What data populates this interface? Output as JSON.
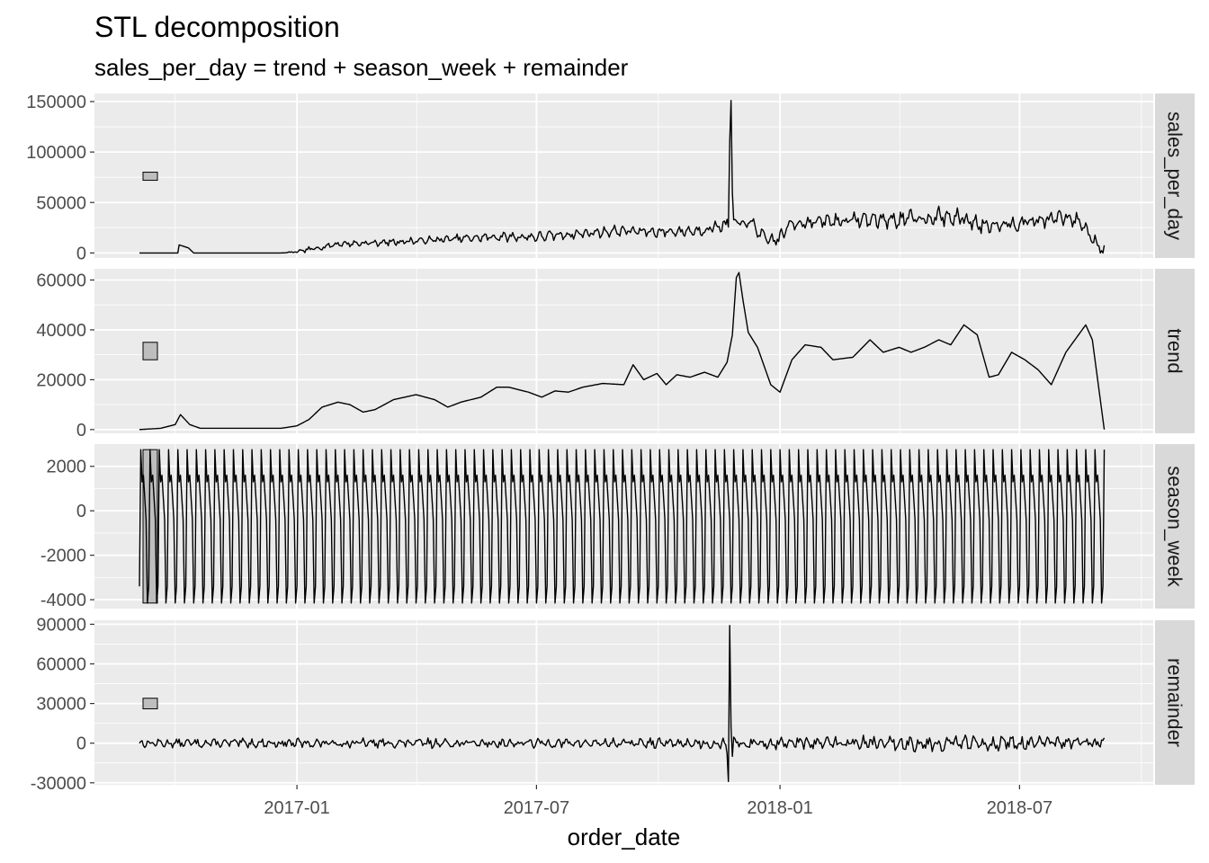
{
  "chart_data": {
    "type": "line",
    "title": "STL decomposition",
    "subtitle": "sales_per_day = trend + season_week + remainder",
    "xlabel": "order_date",
    "x_range": [
      "2016-09-04",
      "2018-09-03"
    ],
    "xlim": [
      "2016-08-01",
      "2018-10-10"
    ],
    "x_ticks": [
      "2017-01",
      "2017-07",
      "2018-01",
      "2018-07"
    ],
    "grid": true,
    "facets": [
      {
        "strip": "sales_per_day",
        "ylim": [
          -5000,
          158000
        ],
        "y_ticks": [
          0,
          50000,
          100000,
          150000
        ],
        "scale_bar": [
          72000,
          80000
        ],
        "series": {
          "type": "daily_with_weekly",
          "base": [
            [
              "2016-09-04",
              0
            ],
            [
              "2016-10-03",
              0
            ],
            [
              "2016-10-04",
              8000
            ],
            [
              "2016-10-11",
              5000
            ],
            [
              "2016-10-15",
              0
            ],
            [
              "2016-12-20",
              0
            ],
            [
              "2017-01-01",
              1000
            ],
            [
              "2017-01-15",
              4500
            ],
            [
              "2017-02-01",
              9000
            ],
            [
              "2017-03-01",
              10000
            ],
            [
              "2017-04-01",
              12000
            ],
            [
              "2017-05-01",
              14000
            ],
            [
              "2017-06-01",
              16000
            ],
            [
              "2017-07-01",
              16000
            ],
            [
              "2017-08-01",
              19000
            ],
            [
              "2017-09-01",
              22000
            ],
            [
              "2017-10-01",
              21000
            ],
            [
              "2017-11-01",
              22000
            ],
            [
              "2017-11-20",
              28000
            ],
            [
              "2017-12-10",
              30000
            ],
            [
              "2017-12-22",
              12000
            ],
            [
              "2017-12-31",
              14000
            ],
            [
              "2018-01-10",
              30000
            ],
            [
              "2018-02-01",
              31000
            ],
            [
              "2018-03-01",
              33000
            ],
            [
              "2018-04-01",
              33000
            ],
            [
              "2018-05-01",
              36000
            ],
            [
              "2018-05-20",
              34000
            ],
            [
              "2018-06-01",
              28000
            ],
            [
              "2018-07-01",
              30000
            ],
            [
              "2018-08-01",
              35000
            ],
            [
              "2018-08-15",
              32000
            ],
            [
              "2018-08-25",
              15000
            ],
            [
              "2018-09-03",
              2000
            ]
          ],
          "amp": [
            [
              "2016-09-04",
              0
            ],
            [
              "2016-12-20",
              0
            ],
            [
              "2017-01-10",
              2500
            ],
            [
              "2017-06-01",
              4500
            ],
            [
              "2017-11-01",
              5500
            ],
            [
              "2018-01-01",
              7000
            ],
            [
              "2018-05-01",
              9000
            ],
            [
              "2018-09-03",
              7000
            ]
          ],
          "spikes": [
            {
              "date": "2017-11-24",
              "values": [
                110000,
                151000,
                60000
              ]
            }
          ],
          "seed": 7
        }
      },
      {
        "strip": "trend",
        "ylim": [
          -1500,
          64500
        ],
        "y_ticks": [
          0,
          20000,
          40000,
          60000
        ],
        "scale_bar": [
          28000,
          35000
        ],
        "series": {
          "type": "smooth",
          "points": [
            [
              "2016-09-04",
              0
            ],
            [
              "2016-09-20",
              500
            ],
            [
              "2016-10-01",
              2000
            ],
            [
              "2016-10-05",
              6000
            ],
            [
              "2016-10-12",
              2000
            ],
            [
              "2016-10-20",
              500
            ],
            [
              "2016-12-20",
              500
            ],
            [
              "2017-01-01",
              1500
            ],
            [
              "2017-01-10",
              4000
            ],
            [
              "2017-01-20",
              9000
            ],
            [
              "2017-02-01",
              11000
            ],
            [
              "2017-02-10",
              10000
            ],
            [
              "2017-02-20",
              7000
            ],
            [
              "2017-03-01",
              8000
            ],
            [
              "2017-03-15",
              12000
            ],
            [
              "2017-04-01",
              14000
            ],
            [
              "2017-04-15",
              12000
            ],
            [
              "2017-04-25",
              9000
            ],
            [
              "2017-05-05",
              11000
            ],
            [
              "2017-05-20",
              13000
            ],
            [
              "2017-06-01",
              17000
            ],
            [
              "2017-06-10",
              17000
            ],
            [
              "2017-06-25",
              15000
            ],
            [
              "2017-07-05",
              13000
            ],
            [
              "2017-07-15",
              15500
            ],
            [
              "2017-07-25",
              15000
            ],
            [
              "2017-08-05",
              17000
            ],
            [
              "2017-08-20",
              18500
            ],
            [
              "2017-09-05",
              18000
            ],
            [
              "2017-09-12",
              26000
            ],
            [
              "2017-09-20",
              20000
            ],
            [
              "2017-09-30",
              22500
            ],
            [
              "2017-10-07",
              18000
            ],
            [
              "2017-10-15",
              22000
            ],
            [
              "2017-10-25",
              21000
            ],
            [
              "2017-11-05",
              23000
            ],
            [
              "2017-11-15",
              21000
            ],
            [
              "2017-11-22",
              27000
            ],
            [
              "2017-11-26",
              38000
            ],
            [
              "2017-11-29",
              61000
            ],
            [
              "2017-12-01",
              63000
            ],
            [
              "2017-12-04",
              52000
            ],
            [
              "2017-12-08",
              39000
            ],
            [
              "2017-12-15",
              33000
            ],
            [
              "2017-12-25",
              18000
            ],
            [
              "2018-01-01",
              15000
            ],
            [
              "2018-01-10",
              28000
            ],
            [
              "2018-01-20",
              34000
            ],
            [
              "2018-02-01",
              33000
            ],
            [
              "2018-02-10",
              28000
            ],
            [
              "2018-02-25",
              29000
            ],
            [
              "2018-03-10",
              36000
            ],
            [
              "2018-03-20",
              31000
            ],
            [
              "2018-04-01",
              33000
            ],
            [
              "2018-04-10",
              31000
            ],
            [
              "2018-04-20",
              33000
            ],
            [
              "2018-05-01",
              36000
            ],
            [
              "2018-05-10",
              34000
            ],
            [
              "2018-05-20",
              42000
            ],
            [
              "2018-05-30",
              38000
            ],
            [
              "2018-06-08",
              21000
            ],
            [
              "2018-06-15",
              22000
            ],
            [
              "2018-06-25",
              31000
            ],
            [
              "2018-07-05",
              28000
            ],
            [
              "2018-07-15",
              24000
            ],
            [
              "2018-07-25",
              18000
            ],
            [
              "2018-08-05",
              31000
            ],
            [
              "2018-08-20",
              42000
            ],
            [
              "2018-08-25",
              36000
            ],
            [
              "2018-09-03",
              0
            ]
          ]
        }
      },
      {
        "strip": "season_week",
        "ylim": [
          -4400,
          3000
        ],
        "y_ticks": [
          -4000,
          -2000,
          0,
          2000
        ],
        "scale_bar": [
          -4150,
          2750
        ],
        "series": {
          "type": "weekly_cycle",
          "pattern": [
            -3400,
            2750,
            1300,
            1600,
            600,
            -400,
            -4150
          ]
        }
      },
      {
        "strip": "remainder",
        "ylim": [
          -31500,
          93000
        ],
        "y_ticks": [
          -30000,
          0,
          30000,
          60000,
          90000
        ],
        "scale_bar": [
          26000,
          34000
        ],
        "series": {
          "type": "noise",
          "amp": [
            [
              "2016-09-04",
              3000
            ],
            [
              "2017-03-01",
              3500
            ],
            [
              "2017-10-01",
              3500
            ],
            [
              "2018-01-01",
              4500
            ],
            [
              "2018-05-01",
              6000
            ],
            [
              "2018-09-03",
              4000
            ]
          ],
          "spikes": [
            {
              "date": "2017-11-22",
              "values": [
                -8000,
                -29000,
                89000,
                12000,
                -10000
              ]
            }
          ],
          "seed": 13
        }
      }
    ]
  }
}
